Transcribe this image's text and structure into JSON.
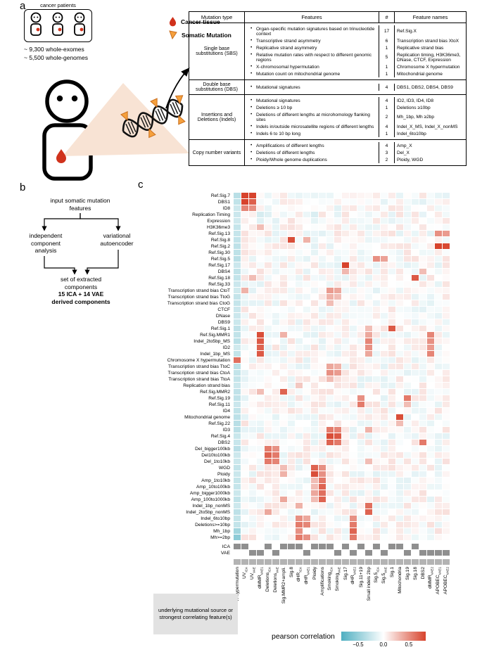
{
  "panels": {
    "a": "a",
    "b": "b",
    "c": "c"
  },
  "panel_a": {
    "patients_caption": "cancer patients",
    "counts": [
      "~ 9,300 whole-exomes",
      "~ 5,500 whole-genomes"
    ],
    "legend": [
      {
        "icon": "cancer-tissue-drop",
        "label": "Cancer tissue",
        "color": "#d0321c"
      },
      {
        "icon": "somatic-mutation-triangle",
        "label": "Somatic Mutation",
        "color": "#f5a03d"
      }
    ],
    "table": {
      "bullet_char": "•",
      "headers": [
        "Mutation type",
        "Features",
        "#",
        "Feature names"
      ],
      "rows": [
        {
          "type": "Single base substitutions (SBS)",
          "features": [
            {
              "text": "Organ-specific mutation signatures based on trinucleotide context",
              "n": "17",
              "names": "Ref.Sig.X"
            },
            {
              "text": "Transcriptive strand asymmetry",
              "n": "6",
              "names": "Transcription strand bias XtoX"
            },
            {
              "text": "Replicative strand asymmetry",
              "n": "1",
              "names": "Replicative strand bias"
            },
            {
              "text": "Relative mutation rates with respect to different genomic regions",
              "n": "5",
              "names": "Replication timing, H3K36me3, DNase, CTCF, Expression"
            },
            {
              "text": "X-chromosomal hypermutation",
              "n": "1",
              "names": "Chromosome X hypermutation"
            },
            {
              "text": "Mutation count on mitochondrial genome",
              "n": "1",
              "names": "Mitochondrial genome"
            }
          ]
        },
        {
          "type": "Double base substitutions (DBS)",
          "features": [
            {
              "text": "Mutational signatures",
              "n": "4",
              "names": "DBS1, DBS2, DBS4, DBS9"
            }
          ]
        },
        {
          "type": "Insertions and Deletions (Indels)",
          "features": [
            {
              "text": "Mutational signatures",
              "n": "4",
              "names": "ID2, ID3, ID4, ID8"
            },
            {
              "text": "Deletions ≥ 10 bp",
              "n": "1",
              "names": "Deletions ≥10bp"
            },
            {
              "text": "Deletions of different lengths at microhomology flanking sites",
              "n": "2",
              "names": "Mh_1bp, Mh ≥2bp"
            },
            {
              "text": "Indels in/outside microsatellite regions of different lengths",
              "n": "4",
              "names": "Indel_X_MS, Indel_X_nonMS"
            },
            {
              "text": "Indels 6 to 10 bp long",
              "n": "1",
              "names": "Indel_6to10bp"
            }
          ]
        },
        {
          "type": "Copy number variants",
          "features": [
            {
              "text": "Amplifications of different lengths",
              "n": "4",
              "names": "Amp_X"
            },
            {
              "text": "Deletions of different lengths",
              "n": "3",
              "names": "Del_X"
            },
            {
              "text": "Ploidy/Whole genome duplications",
              "n": "2",
              "names": "Ploidy, WGD"
            }
          ]
        }
      ]
    }
  },
  "panel_b": {
    "input": "input somatic mutation features",
    "ica": "independent component analysis",
    "vae": "variational autoencoder",
    "result_normal": "set of extracted components",
    "result_bold": "15 ICA + 14 VAE derived components"
  },
  "chart_data": {
    "type": "heatmap",
    "legend_label": "pearson correlation",
    "colorbar_ticks": [
      "−0.5",
      "0.0",
      "0.5"
    ],
    "colors": {
      "negative": "#4fafc1",
      "positive": "#d7432c",
      "indicator_gray": "#8f8f8f",
      "strip_gray": "#b3b3b3"
    },
    "footer_note": "underlying mutational source or strongest correlating feature(s)",
    "rows": [
      "Ref.Sig.7",
      "DBS1",
      "ID8",
      "Replication Timing",
      "Expression",
      "H3K36me3",
      "Ref.Sig.13",
      "Ref.Sig.8",
      "Ref.Sig.2",
      "Ref.Sig.30",
      "Ref.Sig.5",
      "Ref.Sig.17",
      "DBS4",
      "Ref.Sig.18",
      "Ref.Sig.33",
      "Transcription strand bias CtoT",
      "Transcription strand bias TtoG",
      "Transcription strand bias CtoG",
      "CTCF",
      "DNase",
      "DBS9",
      "Ref.Sig.1",
      "Ref.Sig.MMR1",
      "Indel_2to5bp_MS",
      "ID2",
      "Indel_1bp_MS",
      "Chromosome X hypermutation",
      "Transcription strand bias TtoC",
      "Transcription strand bias CtoA",
      "Transcription strand bias TtoA",
      "Replication strand bias",
      "Ref.Sig.MMR2",
      "Ref.Sig.19",
      "Ref.Sig.11",
      "ID4",
      "Mitochondrial genome",
      "Ref.Sig.22",
      "ID3",
      "Ref.Sig.4",
      "DBS2",
      "Del_bigger100kb",
      "Del10to100kb",
      "Del_1to10kb",
      "WGD",
      "Ploidy",
      "Amp_1to10kb",
      "Amp_10to100kb",
      "Amp_bigger1000kb",
      "Amp_100to1000kb",
      "Indel_1bp_nonMS",
      "Indel_2to5bp_nonMS",
      "Indel_6to10bp",
      "Deletions>=10bp",
      "Mh_1bp",
      "Mh>=2bp"
    ],
    "columns": [
      {
        "label": "X-hypermutation",
        "sub": ""
      },
      {
        "label": "UV",
        "sub": "ICA"
      },
      {
        "label": "UV",
        "sub": "VAE"
      },
      {
        "label": "dMMR",
        "sub": "VAE1"
      },
      {
        "label": "Deletions",
        "sub": "ICA"
      },
      {
        "label": "Deletions",
        "sub": "VAE"
      },
      {
        "label": "Sig.MMR2+ampli.",
        "sub": ""
      },
      {
        "label": "Sig.8",
        "sub": ""
      },
      {
        "label": "dHR",
        "sub": "ICA"
      },
      {
        "label": "dHR",
        "sub": "VAE1"
      },
      {
        "label": "Ploidy",
        "sub": ""
      },
      {
        "label": "Amplifications",
        "sub": ""
      },
      {
        "label": "Smoking",
        "sub": "ICA"
      },
      {
        "label": "Smoking",
        "sub": "VAE"
      },
      {
        "label": "Sig.17",
        "sub": ""
      },
      {
        "label": "dHR",
        "sub": "VAE2"
      },
      {
        "label": "Sig.11+19",
        "sub": ""
      },
      {
        "label": "Small indels 2bp",
        "sub": ""
      },
      {
        "label": "Sig.5",
        "sub": "ICA"
      },
      {
        "label": "Sig.5",
        "sub": "VAE"
      },
      {
        "label": "Sig.1",
        "sub": ""
      },
      {
        "label": "Mitochondria",
        "sub": ""
      },
      {
        "label": "Sig.19",
        "sub": ""
      },
      {
        "label": "Sig.18",
        "sub": ""
      },
      {
        "label": "DBS2",
        "sub": ""
      },
      {
        "label": "dMMR",
        "sub": "VAE2"
      },
      {
        "label": "APOBEC",
        "sub": "VAE1"
      },
      {
        "label": "APOBEC",
        "sub": "VAE2"
      }
    ],
    "method_rows": [
      "ICA",
      "VAE"
    ],
    "method_per_column": [
      "ICA",
      "ICA",
      "VAE",
      "VAE",
      "ICA",
      "VAE",
      "ICA",
      "ICA",
      "ICA",
      "VAE",
      "ICA",
      "ICA",
      "ICA",
      "VAE",
      "ICA",
      "VAE",
      "ICA",
      "VAE",
      "ICA",
      "VAE",
      "ICA",
      "ICA",
      "VAE",
      "ICA",
      "VAE",
      "VAE",
      "VAE",
      "VAE"
    ],
    "baseline": {
      "noise_amplitude": 0.14,
      "column_0_value": -0.28
    },
    "notable_cells": [
      [
        0,
        1,
        0.95
      ],
      [
        0,
        2,
        0.88
      ],
      [
        1,
        1,
        0.85
      ],
      [
        1,
        2,
        0.72
      ],
      [
        2,
        1,
        0.55
      ],
      [
        2,
        2,
        0.5
      ],
      [
        3,
        3,
        -0.2
      ],
      [
        3,
        4,
        -0.15
      ],
      [
        3,
        10,
        -0.18
      ],
      [
        4,
        3,
        -0.15
      ],
      [
        4,
        10,
        -0.12
      ],
      [
        5,
        3,
        0.3
      ],
      [
        6,
        26,
        0.5
      ],
      [
        6,
        27,
        0.45
      ],
      [
        7,
        7,
        0.8
      ],
      [
        7,
        9,
        0.35
      ],
      [
        8,
        26,
        0.9
      ],
      [
        8,
        27,
        0.82
      ],
      [
        10,
        18,
        0.5
      ],
      [
        10,
        19,
        0.42
      ],
      [
        11,
        14,
        0.85
      ],
      [
        12,
        14,
        0.32
      ],
      [
        12,
        24,
        0.3
      ],
      [
        13,
        2,
        0.3
      ],
      [
        13,
        23,
        0.75
      ],
      [
        15,
        1,
        0.35
      ],
      [
        15,
        12,
        0.45
      ],
      [
        15,
        13,
        0.4
      ],
      [
        16,
        12,
        0.35
      ],
      [
        16,
        13,
        0.3
      ],
      [
        17,
        12,
        0.3
      ],
      [
        21,
        17,
        0.3
      ],
      [
        21,
        20,
        0.75
      ],
      [
        22,
        3,
        0.8
      ],
      [
        22,
        6,
        0.35
      ],
      [
        22,
        17,
        0.4
      ],
      [
        22,
        25,
        0.55
      ],
      [
        23,
        3,
        0.75
      ],
      [
        23,
        17,
        0.55
      ],
      [
        23,
        25,
        0.5
      ],
      [
        24,
        3,
        0.7
      ],
      [
        24,
        17,
        0.5
      ],
      [
        24,
        25,
        0.45
      ],
      [
        25,
        3,
        0.75
      ],
      [
        25,
        17,
        0.4
      ],
      [
        25,
        25,
        0.55
      ],
      [
        26,
        0,
        0.65
      ],
      [
        27,
        12,
        0.4
      ],
      [
        27,
        13,
        0.35
      ],
      [
        28,
        12,
        0.5
      ],
      [
        28,
        13,
        0.45
      ],
      [
        29,
        12,
        0.3
      ],
      [
        30,
        8,
        0.25
      ],
      [
        31,
        3,
        0.3
      ],
      [
        31,
        6,
        0.7
      ],
      [
        32,
        16,
        0.5
      ],
      [
        32,
        22,
        0.6
      ],
      [
        33,
        16,
        0.6
      ],
      [
        33,
        22,
        0.3
      ],
      [
        35,
        21,
        0.8
      ],
      [
        36,
        21,
        0.3
      ],
      [
        37,
        12,
        0.6
      ],
      [
        37,
        13,
        0.55
      ],
      [
        37,
        17,
        0.35
      ],
      [
        38,
        12,
        0.8
      ],
      [
        38,
        13,
        0.75
      ],
      [
        39,
        12,
        0.7
      ],
      [
        39,
        13,
        0.6
      ],
      [
        39,
        24,
        0.6
      ],
      [
        40,
        4,
        0.6
      ],
      [
        40,
        5,
        0.5
      ],
      [
        41,
        4,
        0.7
      ],
      [
        41,
        5,
        0.6
      ],
      [
        42,
        4,
        0.6
      ],
      [
        42,
        5,
        0.55
      ],
      [
        42,
        17,
        0.3
      ],
      [
        43,
        6,
        0.3
      ],
      [
        43,
        10,
        0.7
      ],
      [
        43,
        11,
        0.5
      ],
      [
        44,
        6,
        0.35
      ],
      [
        44,
        10,
        0.8
      ],
      [
        44,
        11,
        0.5
      ],
      [
        45,
        10,
        0.3
      ],
      [
        45,
        11,
        0.6
      ],
      [
        46,
        10,
        0.3
      ],
      [
        46,
        11,
        0.7
      ],
      [
        47,
        10,
        0.4
      ],
      [
        47,
        11,
        0.65
      ],
      [
        48,
        6,
        0.4
      ],
      [
        48,
        10,
        0.3
      ],
      [
        48,
        11,
        0.7
      ],
      [
        49,
        8,
        0.35
      ],
      [
        49,
        17,
        0.65
      ],
      [
        50,
        4,
        0.4
      ],
      [
        50,
        17,
        0.7
      ],
      [
        51,
        8,
        0.5
      ],
      [
        51,
        9,
        0.4
      ],
      [
        51,
        15,
        0.5
      ],
      [
        52,
        8,
        0.6
      ],
      [
        52,
        9,
        0.55
      ],
      [
        52,
        15,
        0.6
      ],
      [
        53,
        0,
        -0.45
      ],
      [
        53,
        8,
        0.5
      ],
      [
        53,
        15,
        0.7
      ],
      [
        54,
        0,
        -0.55
      ],
      [
        54,
        8,
        0.6
      ],
      [
        54,
        9,
        0.5
      ],
      [
        54,
        15,
        0.6
      ]
    ]
  }
}
